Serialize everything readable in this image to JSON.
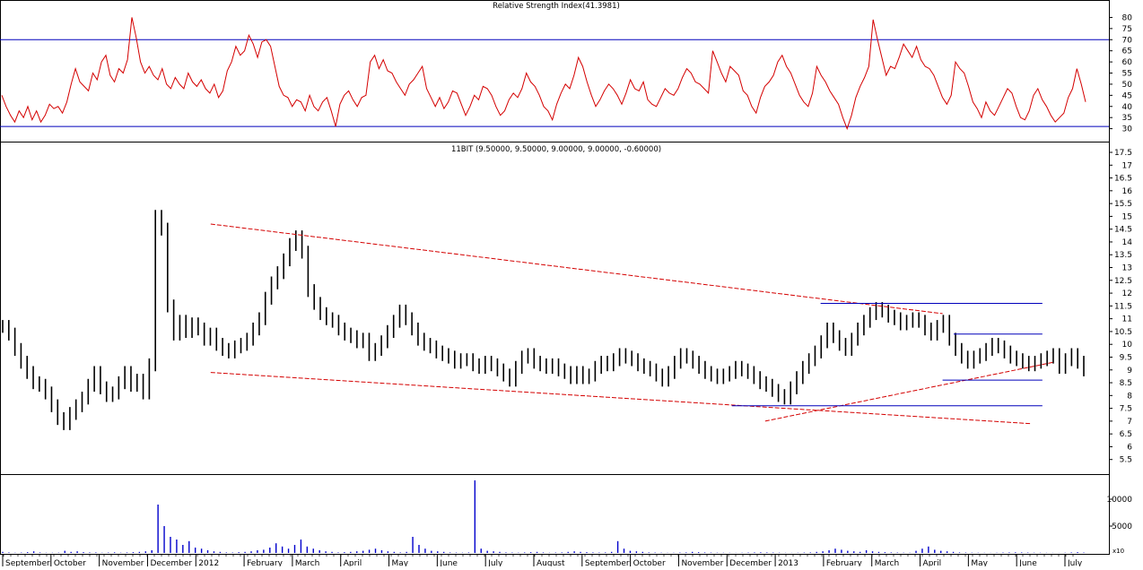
{
  "chart_data": [
    {
      "type": "line",
      "title": "Relative Strength Index(41.3981)",
      "ylim": [
        25,
        83
      ],
      "yticks": [
        30,
        35,
        40,
        45,
        50,
        55,
        60,
        65,
        70,
        75,
        80
      ],
      "reference_lines": [
        70,
        31
      ],
      "colors": {
        "series": "#d40000",
        "reference": "#0000bb"
      },
      "series": [
        {
          "values": [
            45,
            40,
            36,
            33,
            38,
            35,
            40,
            34,
            38,
            33,
            36,
            41,
            39,
            40,
            37,
            42,
            50,
            57,
            51,
            49,
            47,
            55,
            52,
            60,
            63,
            54,
            51,
            57,
            55,
            61,
            80,
            71,
            60,
            55,
            58,
            54,
            52,
            57,
            50,
            48,
            53,
            50,
            48,
            55,
            51,
            49,
            52,
            48,
            46,
            50,
            44,
            47,
            56,
            60,
            67,
            63,
            65,
            72,
            68,
            62,
            69,
            70,
            67,
            58,
            49,
            45,
            44,
            40,
            43,
            42,
            38,
            45,
            40,
            38,
            42,
            44,
            38,
            31,
            41,
            45,
            47,
            43,
            40,
            44,
            45,
            60,
            63,
            57,
            61,
            56,
            55,
            51,
            48,
            45,
            50,
            52,
            55,
            58,
            48,
            44,
            40,
            44,
            39,
            42,
            47,
            46,
            41,
            36,
            40,
            45,
            43,
            49,
            48,
            45,
            40,
            36,
            38,
            43,
            46,
            44,
            48,
            55,
            51,
            49,
            45,
            40,
            38,
            34,
            41,
            46,
            50,
            48,
            54,
            62,
            58,
            51,
            45,
            40,
            43,
            47,
            50,
            48,
            45,
            41,
            46,
            52,
            48,
            47,
            51,
            43,
            41,
            40,
            44,
            48,
            46,
            45,
            48,
            53,
            57,
            55,
            51,
            50,
            48,
            46,
            65,
            60,
            55,
            51,
            58,
            56,
            54,
            47,
            45,
            40,
            37,
            44,
            49,
            51,
            54,
            60,
            63,
            58,
            55,
            50,
            45,
            42,
            40,
            46,
            58,
            54,
            51,
            47,
            44,
            41,
            35,
            30,
            36,
            44,
            49,
            53,
            58,
            79,
            70,
            62,
            54,
            58,
            57,
            62,
            68,
            65,
            62,
            67,
            61,
            58,
            57,
            54,
            49,
            44,
            41,
            45,
            60,
            57,
            55,
            49,
            42,
            39,
            35,
            42,
            38,
            36,
            40,
            44,
            48,
            46,
            40,
            35,
            34,
            38,
            45,
            48,
            43,
            40,
            36,
            33,
            35,
            37,
            44,
            48,
            57,
            50,
            42
          ]
        }
      ]
    },
    {
      "type": "bar",
      "title": "11BIT (9.50000, 9.50000, 9.00000, 9.00000, -0.60000)",
      "ylim": [
        5.0,
        17.5
      ],
      "yticks": [
        5.5,
        6.0,
        6.5,
        7.0,
        7.5,
        8.0,
        8.5,
        9.0,
        9.5,
        10.0,
        10.5,
        11.0,
        11.5,
        12.0,
        12.5,
        13.0,
        13.5,
        14.0,
        14.5,
        15.0,
        15.5,
        16.0,
        16.5,
        17.0,
        17.5
      ],
      "colors": {
        "bars": "#000000",
        "trendlines": "#d40000",
        "levels": "#0000bb"
      },
      "series": [
        {
          "values": [
            10.7,
            10.4,
            9.8,
            9.3,
            8.9,
            8.5,
            8.4,
            8.1,
            7.6,
            7.1,
            6.9,
            7.3,
            7.6,
            7.9,
            8.4,
            8.9,
            8.3,
            8.0,
            8.1,
            8.5,
            8.9,
            8.4,
            8.6,
            8.1,
            9.2,
            15.0,
            14.5,
            11.5,
            10.4,
            10.9,
            10.5,
            10.8,
            10.6,
            10.2,
            10.4,
            10.0,
            9.8,
            9.7,
            9.9,
            10.0,
            10.2,
            10.6,
            11.0,
            11.8,
            12.4,
            12.8,
            13.3,
            13.9,
            14.2,
            13.6,
            12.1,
            11.6,
            11.2,
            11.0,
            10.9,
            10.6,
            10.4,
            10.3,
            10.1,
            10.2,
            9.6,
            9.8,
            10.1,
            10.5,
            10.9,
            11.3,
            11.0,
            10.6,
            10.2,
            10.0,
            9.9,
            9.7,
            9.6,
            9.5,
            9.3,
            9.4,
            9.4,
            9.2,
            9.1,
            9.3,
            9.2,
            9.0,
            8.8,
            8.6,
            9.1,
            9.5,
            9.6,
            9.3,
            9.2,
            9.1,
            9.2,
            9.0,
            8.9,
            8.7,
            8.9,
            8.7,
            8.8,
            9.1,
            9.3,
            9.2,
            9.4,
            9.6,
            9.5,
            9.4,
            9.2,
            9.1,
            9.0,
            8.8,
            8.6,
            8.9,
            9.3,
            9.6,
            9.5,
            9.3,
            9.1,
            8.9,
            8.8,
            8.7,
            8.8,
            8.9,
            9.1,
            9.0,
            8.9,
            8.7,
            8.5,
            8.4,
            8.2,
            8.0,
            7.9,
            8.3,
            8.7,
            9.1,
            9.4,
            9.7,
            10.1,
            10.6,
            10.3,
            10.0,
            9.8,
            10.2,
            10.6,
            10.9,
            11.2,
            11.4,
            11.3,
            11.1,
            11.0,
            10.8,
            10.9,
            11.0,
            10.9,
            10.6,
            10.4,
            10.7,
            10.9,
            10.2,
            9.8,
            9.5,
            9.3,
            9.5,
            9.6,
            9.8,
            10.0,
            9.9,
            9.7,
            9.5,
            9.4,
            9.3,
            9.2,
            9.3,
            9.4,
            9.5,
            9.6,
            9.1,
            9.4,
            9.6,
            9.3,
            9.0
          ]
        }
      ],
      "trendlines": [
        {
          "x": [
            0.19,
            0.85
          ],
          "y": [
            14.7,
            11.2
          ]
        },
        {
          "x": [
            0.19,
            0.93
          ],
          "y": [
            8.9,
            6.9
          ]
        },
        {
          "x": [
            0.69,
            0.95
          ],
          "y": [
            7.0,
            9.3
          ]
        }
      ],
      "levels": [
        {
          "x": [
            0.74,
            0.94
          ],
          "y": 11.6
        },
        {
          "x": [
            0.86,
            0.94
          ],
          "y": 10.4
        },
        {
          "x": [
            0.85,
            0.94
          ],
          "y": 8.6
        },
        {
          "x": [
            0.66,
            0.94
          ],
          "y": 7.6
        }
      ]
    },
    {
      "type": "bar",
      "ylim": [
        0,
        14000
      ],
      "yticks": [
        5000,
        10000
      ],
      "axis_note": "x10",
      "colors": {
        "bars": "#0000cc"
      },
      "series": [
        {
          "values": [
            200,
            100,
            50,
            80,
            150,
            300,
            100,
            50,
            50,
            60,
            400,
            200,
            300,
            150,
            100,
            100,
            50,
            80,
            120,
            60,
            100,
            150,
            200,
            300,
            500,
            9000,
            5000,
            3000,
            2500,
            1500,
            2200,
            1000,
            800,
            500,
            300,
            200,
            100,
            80,
            150,
            200,
            300,
            500,
            600,
            1000,
            1800,
            1200,
            800,
            1500,
            2500,
            1200,
            800,
            500,
            300,
            200,
            100,
            150,
            200,
            300,
            400,
            600,
            800,
            500,
            300,
            200,
            100,
            200,
            3000,
            1500,
            800,
            400,
            300,
            200,
            100,
            80,
            60,
            100,
            13500,
            800,
            400,
            300,
            200,
            100,
            80,
            60,
            100,
            150,
            200,
            100,
            50,
            80,
            100,
            200,
            300,
            200,
            150,
            100,
            80,
            100,
            200,
            2200,
            800,
            400,
            300,
            200,
            100,
            80,
            60,
            40,
            50,
            80,
            100,
            200,
            150,
            100,
            80,
            60,
            50,
            40,
            30,
            50,
            80,
            100,
            120,
            100,
            80,
            60,
            40,
            30,
            50,
            80,
            100,
            200,
            300,
            500,
            800,
            600,
            400,
            300,
            200,
            500,
            300,
            200,
            150,
            100,
            80,
            60,
            50,
            400,
            800,
            1200,
            600,
            400,
            300,
            200,
            100,
            80,
            60,
            50,
            40,
            30,
            50,
            80,
            100,
            120,
            100,
            80,
            60,
            50,
            40,
            30,
            20,
            50,
            100,
            150,
            80
          ]
        }
      ]
    }
  ],
  "x_axis": {
    "month_labels": [
      "September",
      "October",
      "November",
      "December",
      "2012",
      "February",
      "March",
      "April",
      "May",
      "June",
      "July",
      "August",
      "September",
      "October",
      "November",
      "December",
      "2013",
      "February",
      "March",
      "April",
      "May",
      "June",
      "July"
    ]
  }
}
